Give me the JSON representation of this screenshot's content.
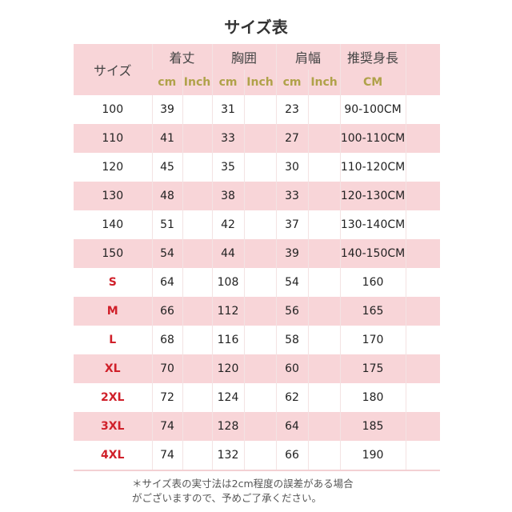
{
  "title": "サイズ表",
  "header": {
    "size": "サイズ",
    "length": "着丈",
    "chest": "胸囲",
    "shoulder": "肩幅",
    "height": "推奨身長",
    "cm": "cm",
    "inch": "Inch",
    "height_unit": "CM"
  },
  "rows": [
    {
      "size": "100",
      "length": "39",
      "chest": "31",
      "shoulder": "23",
      "height": "90-100CM"
    },
    {
      "size": "110",
      "length": "41",
      "chest": "33",
      "shoulder": "27",
      "height": "100-110CM"
    },
    {
      "size": "120",
      "length": "45",
      "chest": "35",
      "shoulder": "30",
      "height": "110-120CM"
    },
    {
      "size": "130",
      "length": "48",
      "chest": "38",
      "shoulder": "33",
      "height": "120-130CM"
    },
    {
      "size": "140",
      "length": "51",
      "chest": "42",
      "shoulder": "37",
      "height": "130-140CM"
    },
    {
      "size": "150",
      "length": "54",
      "chest": "44",
      "shoulder": "39",
      "height": "140-150CM"
    },
    {
      "size": "S",
      "length": "64",
      "chest": "108",
      "shoulder": "54",
      "height": "160"
    },
    {
      "size": "M",
      "length": "66",
      "chest": "112",
      "shoulder": "56",
      "height": "165"
    },
    {
      "size": "L",
      "length": "68",
      "chest": "116",
      "shoulder": "58",
      "height": "170"
    },
    {
      "size": "XL",
      "length": "70",
      "chest": "120",
      "shoulder": "60",
      "height": "175"
    },
    {
      "size": "2XL",
      "length": "72",
      "chest": "124",
      "shoulder": "62",
      "height": "180"
    },
    {
      "size": "3XL",
      "length": "74",
      "chest": "128",
      "shoulder": "64",
      "height": "185"
    },
    {
      "size": "4XL",
      "length": "74",
      "chest": "132",
      "shoulder": "66",
      "height": "190"
    }
  ],
  "note": [
    "＊サイズ表の実寸法は2cm程度の誤差がある場合",
    "がございますので、予めご了承ください。"
  ],
  "colors": {
    "pink": "#f8d5d8",
    "red": "#d0202a",
    "unit": "#b0a24a"
  }
}
